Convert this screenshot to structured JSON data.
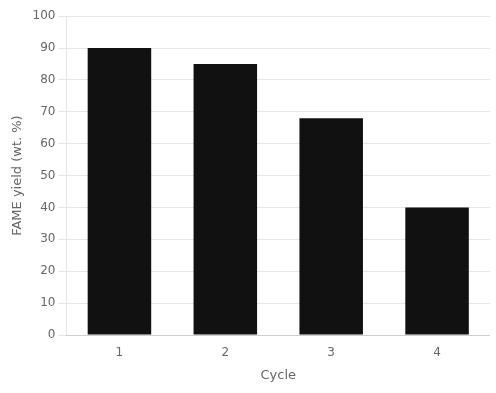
{
  "chart_data": {
    "type": "bar",
    "xlabel": "Cycle",
    "ylabel": "FAME yield (wt. %)",
    "categories": [
      "1",
      "2",
      "3",
      "4"
    ],
    "values": [
      90,
      85,
      68,
      40
    ],
    "color": "#111111",
    "ylim": [
      0,
      100
    ],
    "yticks": [
      0,
      10,
      20,
      30,
      40,
      50,
      60,
      70,
      80,
      90,
      100
    ],
    "grid": true
  }
}
